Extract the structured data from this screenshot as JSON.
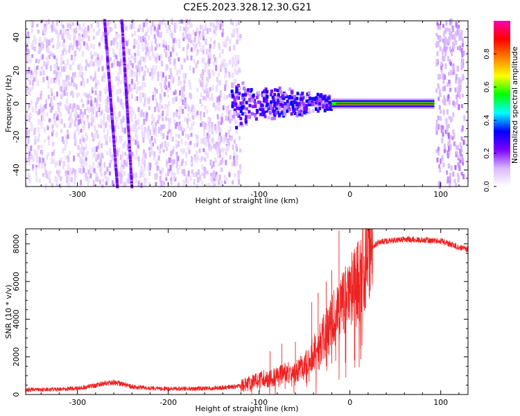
{
  "figure": {
    "title": "C2E5.2023.328.12.30.G21"
  },
  "chart_data": [
    {
      "type": "heatmap",
      "xlabel": "Height of straight line (km)",
      "ylabel": "Frequency (Hz)",
      "xlim": [
        -357,
        130
      ],
      "ylim": [
        -50,
        50
      ],
      "xticks": [
        -300,
        -200,
        -100,
        0,
        100
      ],
      "yticks": [
        -40,
        -20,
        0,
        20,
        40
      ],
      "grid": false,
      "colormap": {
        "label": "Normalized spectral amplitude",
        "range": [
          0.0,
          1.0
        ],
        "ticks": [
          0.0,
          0.2,
          0.4,
          0.6,
          0.8
        ],
        "colors": [
          "#ffffff",
          "#d9b8ff",
          "#7b00ff",
          "#0000ff",
          "#00ffff",
          "#00ff00",
          "#ffff00",
          "#ff8000",
          "#ff0000",
          "#ff00aa"
        ]
      },
      "features": [
        {
          "name": "noise",
          "x_range": [
            -357,
            -120
          ],
          "freq_range": [
            -50,
            50
          ],
          "amplitude": 0.05
        },
        {
          "name": "streak",
          "x_at_top": -270,
          "x_at_bottom": -256,
          "amplitude": 0.2
        },
        {
          "name": "streak",
          "x_at_top": -251,
          "x_at_bottom": -240,
          "amplitude": 0.2
        },
        {
          "name": "scatter",
          "x_range": [
            -130,
            -20
          ],
          "freq_range": [
            -15,
            15
          ],
          "amplitude": 0.25
        },
        {
          "name": "carrier",
          "x_range": [
            -20,
            93
          ],
          "freq": 0,
          "amplitude": 0.95
        },
        {
          "name": "noise",
          "x_range": [
            95,
            126
          ],
          "freq_range": [
            -50,
            50
          ],
          "amplitude": 0.1
        }
      ]
    },
    {
      "type": "line",
      "xlabel": "Height of straight line (km)",
      "ylabel": "SNR (10 * v/v)",
      "xlim": [
        -357,
        130
      ],
      "ylim": [
        0,
        8800
      ],
      "xticks": [
        -300,
        -200,
        -100,
        0,
        100
      ],
      "yticks": [
        0,
        2000,
        4000,
        6000,
        8000
      ],
      "grid": false,
      "color": "#ee2222",
      "series": [
        {
          "x": [
            -357,
            -330,
            -300,
            -280,
            -270,
            -260,
            -250,
            -240,
            -220,
            -200,
            -180,
            -160,
            -140,
            -120,
            -110,
            -100,
            -90,
            -80,
            -70,
            -60,
            -50,
            -40,
            -30,
            -20,
            -15,
            -10,
            -5,
            0,
            5,
            10,
            15,
            20,
            25,
            30,
            40,
            50,
            60,
            70,
            80,
            90,
            100,
            110,
            120,
            130
          ],
          "y": [
            250,
            260,
            320,
            480,
            600,
            650,
            560,
            420,
            330,
            300,
            310,
            320,
            360,
            450,
            600,
            800,
            850,
            1000,
            1150,
            1250,
            1500,
            2200,
            3000,
            3800,
            4200,
            4600,
            5000,
            5300,
            5700,
            6000,
            6800,
            7400,
            7800,
            8050,
            8150,
            8200,
            8250,
            8230,
            8200,
            8180,
            8150,
            8000,
            7800,
            7700
          ]
        }
      ],
      "spikes": [
        {
          "x": -88,
          "y": 2300
        },
        {
          "x": -75,
          "y": 2700
        },
        {
          "x": -60,
          "y": 2800
        },
        {
          "x": -42,
          "y": 4900
        },
        {
          "x": -35,
          "y": 5400
        },
        {
          "x": -26,
          "y": 6000
        },
        {
          "x": -20,
          "y": 6600
        },
        {
          "x": -12,
          "y": 8700
        },
        {
          "x": -5,
          "y": 6800
        },
        {
          "x": 5,
          "y": 7200
        },
        {
          "x": 12,
          "y": 7500
        }
      ]
    }
  ]
}
